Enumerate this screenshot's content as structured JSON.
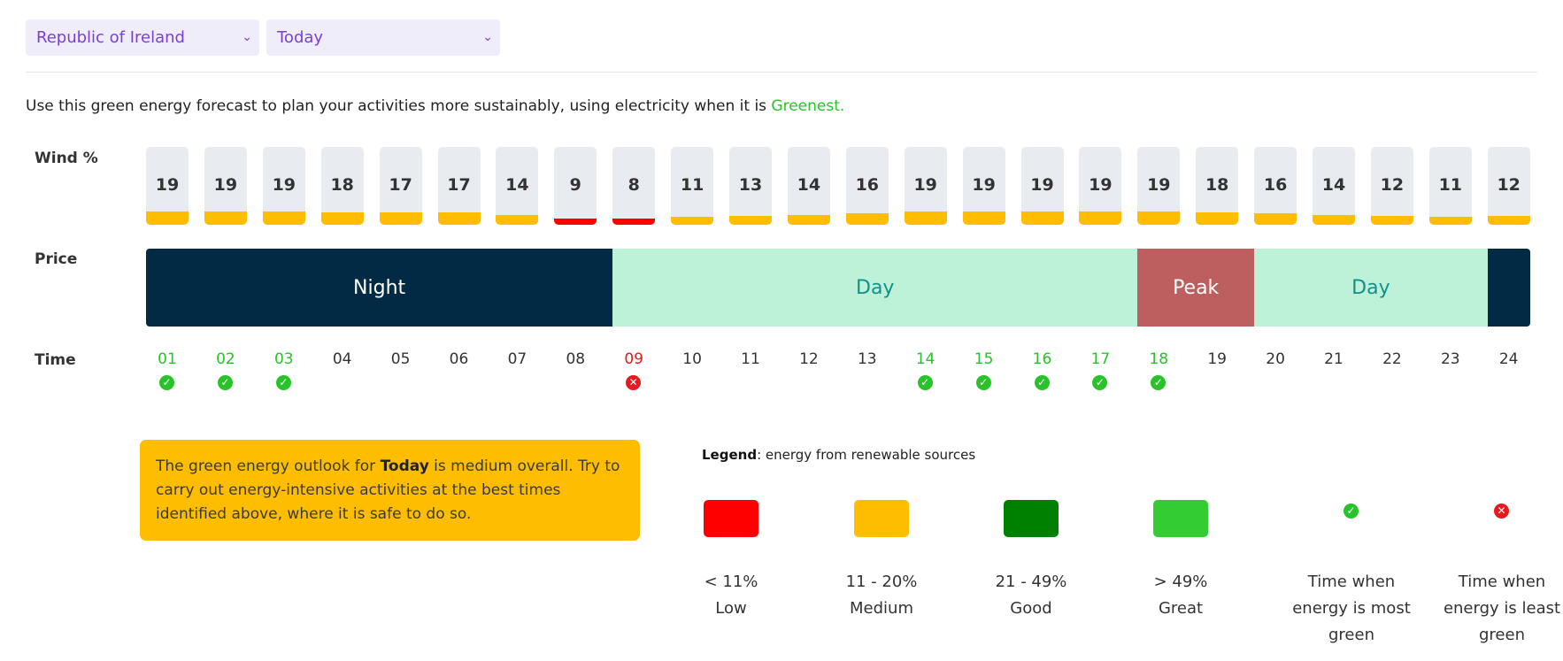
{
  "filters": {
    "region": "Republic of Ireland",
    "day": "Today"
  },
  "intro": {
    "text": "Use this green energy forecast to plan your activities more sustainably, using electricity when it is ",
    "highlight": "Greenest."
  },
  "row_labels": {
    "wind": "Wind %",
    "price": "Price",
    "time": "Time"
  },
  "wind": [
    {
      "value": "19",
      "level": "medium"
    },
    {
      "value": "19",
      "level": "medium"
    },
    {
      "value": "19",
      "level": "medium"
    },
    {
      "value": "18",
      "level": "medium"
    },
    {
      "value": "17",
      "level": "medium"
    },
    {
      "value": "17",
      "level": "medium"
    },
    {
      "value": "14",
      "level": "medium"
    },
    {
      "value": "9",
      "level": "low"
    },
    {
      "value": "8",
      "level": "low"
    },
    {
      "value": "11",
      "level": "medium"
    },
    {
      "value": "13",
      "level": "medium"
    },
    {
      "value": "14",
      "level": "medium"
    },
    {
      "value": "16",
      "level": "medium"
    },
    {
      "value": "19",
      "level": "medium"
    },
    {
      "value": "19",
      "level": "medium"
    },
    {
      "value": "19",
      "level": "medium"
    },
    {
      "value": "19",
      "level": "medium"
    },
    {
      "value": "19",
      "level": "medium"
    },
    {
      "value": "18",
      "level": "medium"
    },
    {
      "value": "16",
      "level": "medium"
    },
    {
      "value": "14",
      "level": "medium"
    },
    {
      "value": "12",
      "level": "medium"
    },
    {
      "value": "11",
      "level": "medium"
    },
    {
      "value": "12",
      "level": "medium"
    }
  ],
  "price": [
    {
      "label": "Night",
      "start_hour": 1,
      "end_hour": 8,
      "kind": "night"
    },
    {
      "label": "Day",
      "start_hour": 9,
      "end_hour": 17,
      "kind": "day"
    },
    {
      "label": "Peak",
      "start_hour": 18,
      "end_hour": 19,
      "kind": "peak"
    },
    {
      "label": "Day",
      "start_hour": 20,
      "end_hour": 23,
      "kind": "day"
    },
    {
      "label": "",
      "start_hour": 24,
      "end_hour": 24,
      "kind": "night"
    }
  ],
  "times": [
    {
      "label": "01",
      "mark": "most"
    },
    {
      "label": "02",
      "mark": "most"
    },
    {
      "label": "03",
      "mark": "most"
    },
    {
      "label": "04",
      "mark": ""
    },
    {
      "label": "05",
      "mark": ""
    },
    {
      "label": "06",
      "mark": ""
    },
    {
      "label": "07",
      "mark": ""
    },
    {
      "label": "08",
      "mark": ""
    },
    {
      "label": "09",
      "mark": "least"
    },
    {
      "label": "10",
      "mark": ""
    },
    {
      "label": "11",
      "mark": ""
    },
    {
      "label": "12",
      "mark": ""
    },
    {
      "label": "13",
      "mark": ""
    },
    {
      "label": "14",
      "mark": "most"
    },
    {
      "label": "15",
      "mark": "most"
    },
    {
      "label": "16",
      "mark": "most"
    },
    {
      "label": "17",
      "mark": "most"
    },
    {
      "label": "18",
      "mark": "most"
    },
    {
      "label": "19",
      "mark": ""
    },
    {
      "label": "20",
      "mark": ""
    },
    {
      "label": "21",
      "mark": ""
    },
    {
      "label": "22",
      "mark": ""
    },
    {
      "label": "23",
      "mark": ""
    },
    {
      "label": "24",
      "mark": ""
    }
  ],
  "outlook": {
    "prefix": "The green energy outlook for ",
    "day": "Today",
    "suffix": " is medium overall. Try to carry out energy-intensive activities at the best times identified above, where it is safe to do so."
  },
  "legend": {
    "title_bold": "Legend",
    "title_rest": ": energy from renewable sources",
    "items": [
      {
        "color": "#ff0000",
        "range": "< 11%",
        "name": "Low"
      },
      {
        "color": "#ffbd00",
        "range": "11 - 20%",
        "name": "Medium"
      },
      {
        "color": "#008000",
        "range": "21 - 49%",
        "name": "Good"
      },
      {
        "color": "#33cc33",
        "range": "> 49%",
        "name": "Great"
      }
    ],
    "most_green": {
      "icon": "check-circle-icon",
      "text": "Time when energy is most green"
    },
    "least_green": {
      "icon": "x-circle-icon",
      "text": "Time when energy is least green"
    }
  },
  "colors": {
    "low": "#ff0000",
    "medium": "#ffbd00",
    "night": "#032a45",
    "day": "#bdf2d8",
    "peak": "#bd5f5f",
    "green_text": "#28c328",
    "red_text": "#e8191d",
    "check": "#28c328",
    "cross": "#e8191d"
  }
}
